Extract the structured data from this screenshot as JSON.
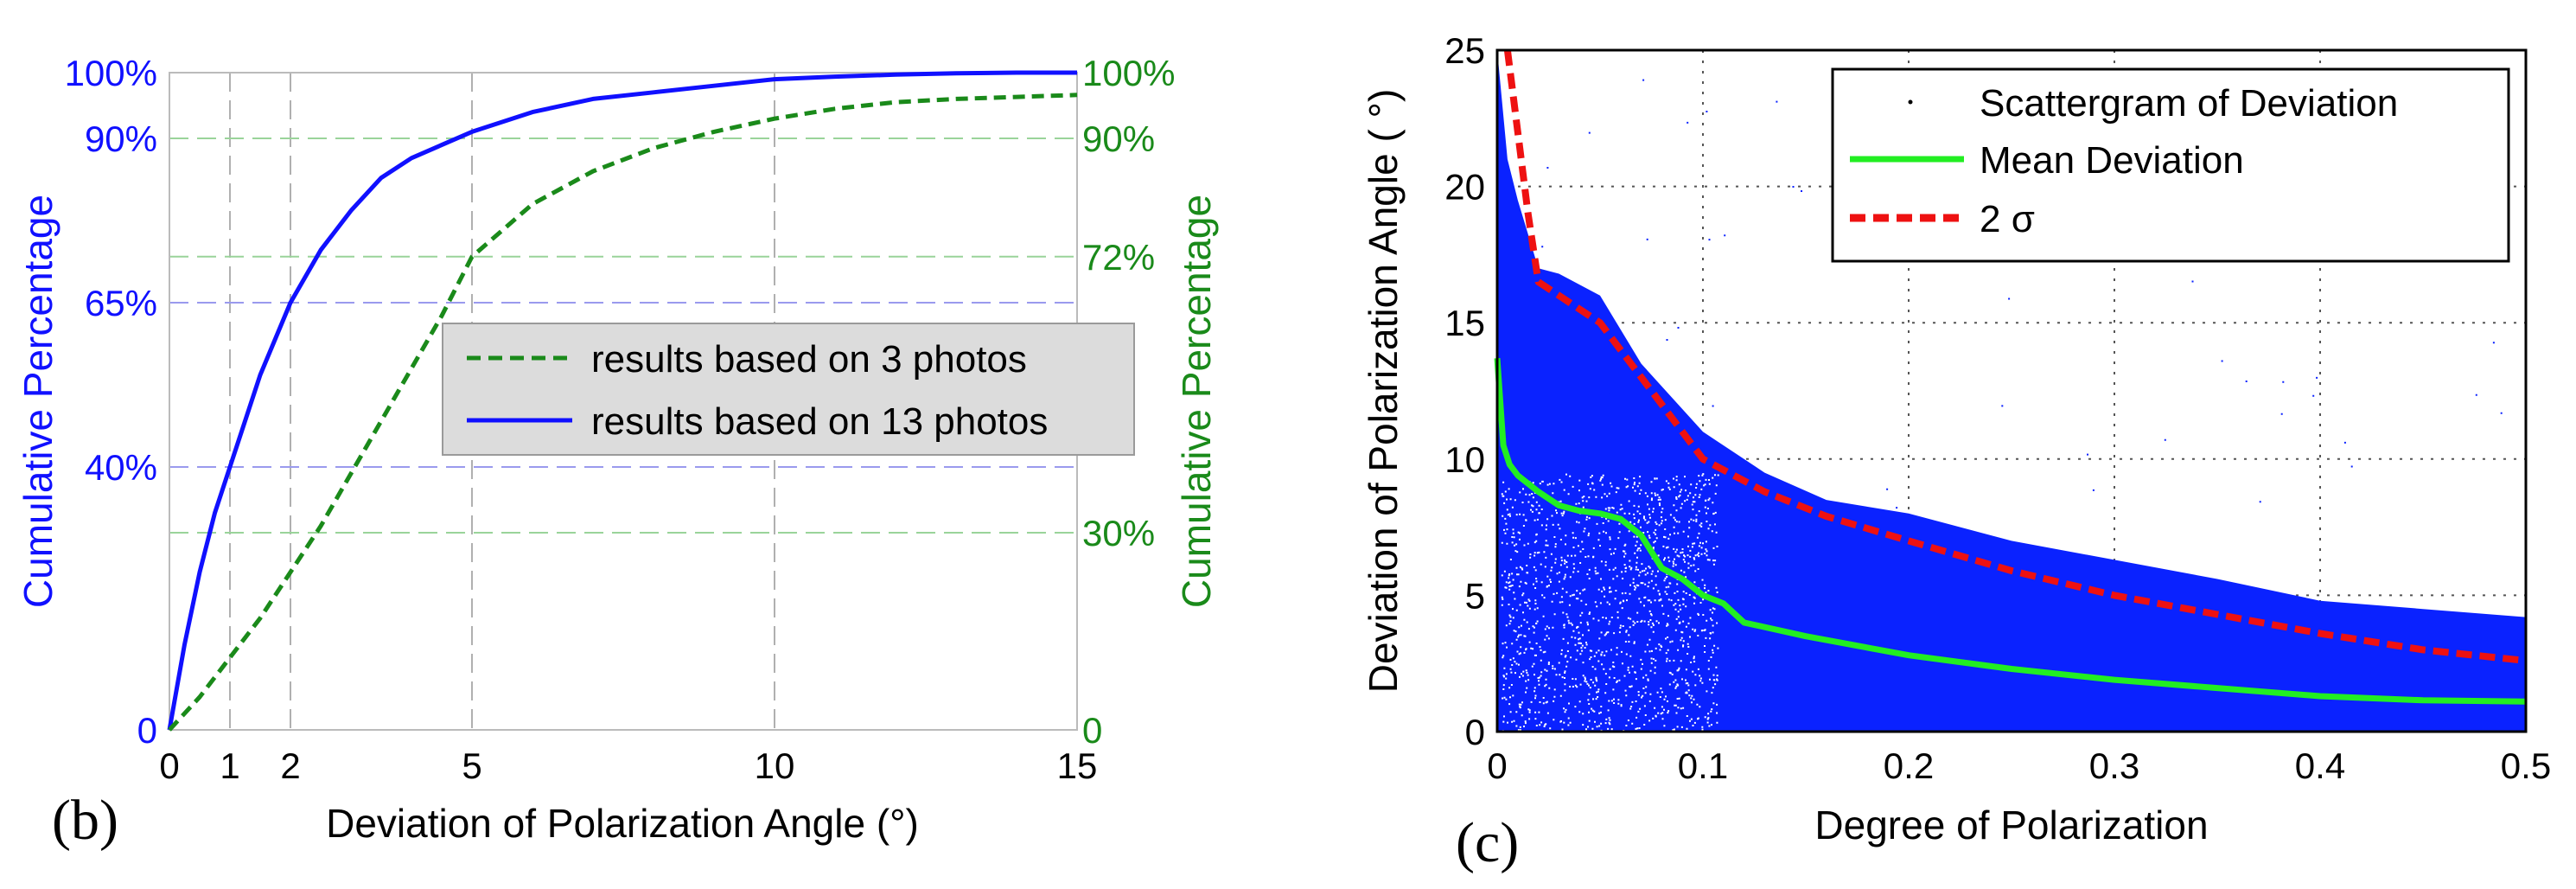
{
  "colors": {
    "blue": "#1010ff",
    "green": "#1a8a1a",
    "bright_green": "#22ee22",
    "red": "#ee1111",
    "scatter_blue": "#0a22ff"
  },
  "panels": {
    "b": "(b)",
    "c": "(c)"
  },
  "chart_data": [
    {
      "type": "line",
      "panel": "(b)",
      "xlabel": "Deviation of Polarization Angle (°)",
      "ylabel_left": "Cumulative Percentage",
      "ylabel_right": "Cumulative Percentage",
      "xlim": [
        0,
        15
      ],
      "ylim": [
        0,
        100
      ],
      "x_ticks": [
        "0",
        "1",
        "2",
        "5",
        "10",
        "15"
      ],
      "x_tick_values": [
        0,
        1,
        2,
        5,
        10,
        15
      ],
      "y_ticks_left": [
        "0",
        "40%",
        "65%",
        "90%",
        "100%"
      ],
      "y_tick_values_left": [
        0,
        40,
        65,
        90,
        100
      ],
      "y_ticks_right": [
        "0",
        "30%",
        "72%",
        "90%",
        "100%"
      ],
      "y_tick_values_right": [
        0,
        30,
        72,
        90,
        100
      ],
      "legend": [
        "results based on 3 photos",
        "results based on 13 photos"
      ],
      "series": [
        {
          "name": "results based on 13 photos",
          "style": "solid",
          "color": "#1010ff",
          "x": [
            0,
            0.25,
            0.5,
            0.75,
            1,
            1.5,
            2,
            2.5,
            3,
            3.5,
            4,
            5,
            6,
            7,
            8,
            9,
            10,
            11,
            12,
            13,
            14,
            15
          ],
          "y": [
            0,
            13,
            24,
            33,
            40,
            54,
            65,
            73,
            79,
            84,
            87,
            91,
            94,
            96,
            97,
            98,
            99,
            99.4,
            99.7,
            99.9,
            100,
            100
          ]
        },
        {
          "name": "results based on 3 photos",
          "style": "dashed",
          "color": "#1a8a1a",
          "x": [
            0,
            0.5,
            1,
            1.5,
            2,
            2.5,
            3,
            3.5,
            4,
            4.5,
            5,
            6,
            7,
            8,
            9,
            10,
            11,
            12,
            13,
            14,
            15
          ],
          "y": [
            0,
            5,
            11,
            17,
            24,
            31,
            39,
            47,
            55,
            63,
            72,
            80,
            85,
            88.5,
            91,
            93,
            94.5,
            95.5,
            96,
            96.3,
            96.6
          ]
        }
      ]
    },
    {
      "type": "scatter",
      "panel": "(c)",
      "xlabel": "Degree of Polarization",
      "ylabel": "Deviation of Polarization Angle ( °)",
      "xlim": [
        0,
        0.5
      ],
      "ylim": [
        0,
        25
      ],
      "x_ticks": [
        "0",
        "0.1",
        "0.2",
        "0.3",
        "0.4",
        "0.5"
      ],
      "x_tick_values": [
        0,
        0.1,
        0.2,
        0.3,
        0.4,
        0.5
      ],
      "y_ticks": [
        "0",
        "5",
        "10",
        "15",
        "20",
        "25"
      ],
      "y_tick_values": [
        0,
        5,
        10,
        15,
        20,
        25
      ],
      "grid": true,
      "legend": [
        "Scattergram of Deviation",
        "Mean Deviation",
        "2 σ"
      ],
      "scatter_envelope": {
        "x": [
          0,
          0.005,
          0.01,
          0.02,
          0.03,
          0.05,
          0.07,
          0.1,
          0.13,
          0.16,
          0.2,
          0.25,
          0.3,
          0.35,
          0.4,
          0.45,
          0.5
        ],
        "upper": [
          25,
          21,
          19.5,
          17,
          16.8,
          16,
          13.5,
          11,
          9.5,
          8.5,
          8,
          7,
          6.3,
          5.6,
          4.8,
          4.5,
          4.2
        ]
      },
      "series": [
        {
          "name": "Mean Deviation",
          "style": "solid",
          "color": "#22ee22",
          "x": [
            0,
            0.003,
            0.006,
            0.01,
            0.02,
            0.03,
            0.04,
            0.05,
            0.06,
            0.07,
            0.08,
            0.09,
            0.1,
            0.11,
            0.12,
            0.15,
            0.2,
            0.25,
            0.3,
            0.35,
            0.4,
            0.45,
            0.5
          ],
          "y": [
            13.7,
            10.5,
            9.8,
            9.4,
            8.8,
            8.3,
            8.1,
            8.0,
            7.8,
            7.2,
            6.0,
            5.6,
            5.0,
            4.7,
            4.0,
            3.5,
            2.8,
            2.3,
            1.9,
            1.6,
            1.3,
            1.15,
            1.1
          ]
        },
        {
          "name": "2 σ",
          "style": "dashed",
          "color": "#ee1111",
          "x": [
            0.005,
            0.01,
            0.015,
            0.02,
            0.03,
            0.05,
            0.07,
            0.1,
            0.13,
            0.16,
            0.2,
            0.25,
            0.3,
            0.35,
            0.4,
            0.45,
            0.5
          ],
          "y": [
            25,
            22,
            19,
            16.5,
            16,
            15,
            13,
            10,
            8.8,
            7.9,
            7.0,
            5.9,
            5.0,
            4.3,
            3.6,
            3.0,
            2.6
          ]
        }
      ]
    }
  ]
}
